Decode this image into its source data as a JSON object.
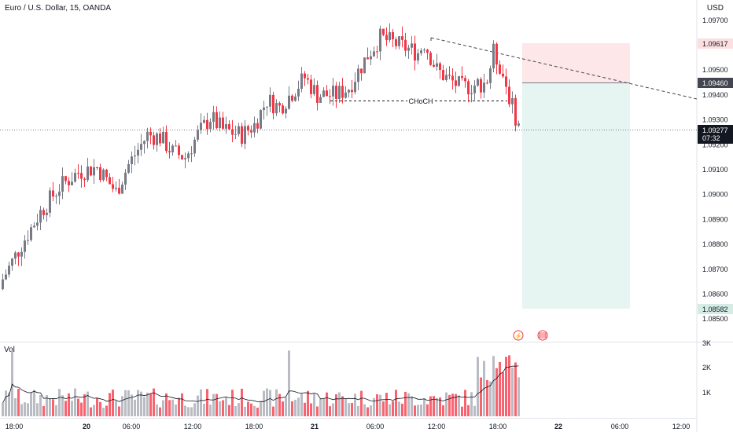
{
  "header": {
    "symbol_title": "Euro / U.S. Dollar, 15, OANDA",
    "currency": "USD"
  },
  "price_axis": {
    "ticks": [
      "1.09700",
      "1.09600",
      "1.09500",
      "1.09400",
      "1.09300",
      "1.09200",
      "1.09100",
      "1.09000",
      "1.08900",
      "1.08800",
      "1.08700",
      "1.08600",
      "1.08500"
    ]
  },
  "price_labels": {
    "stop": "1.09617",
    "entry": "1.09460",
    "current": "1.09277",
    "countdown": "07:32",
    "target": "1.08582"
  },
  "annotation": {
    "choch": "CHoCH"
  },
  "volume": {
    "label": "Vol",
    "ticks": [
      "3K",
      "2K",
      "1K"
    ]
  },
  "time_axis": {
    "ticks": [
      {
        "label": "18:00",
        "bold": false
      },
      {
        "label": "20",
        "bold": true
      },
      {
        "label": "06:00",
        "bold": false
      },
      {
        "label": "12:00",
        "bold": false
      },
      {
        "label": "18:00",
        "bold": false
      },
      {
        "label": "21",
        "bold": true
      },
      {
        "label": "06:00",
        "bold": false
      },
      {
        "label": "12:00",
        "bold": false
      },
      {
        "label": "18:00",
        "bold": false
      },
      {
        "label": "22",
        "bold": true
      },
      {
        "label": "06:00",
        "bold": false
      },
      {
        "label": "12:00",
        "bold": false
      }
    ]
  },
  "colors": {
    "up": "#787b86",
    "down": "#f23645",
    "stop_zone": "rgba(242,54,69,0.12)",
    "target_zone": "rgba(8,153,129,0.10)",
    "ma": "#131722"
  },
  "chart_data": {
    "type": "candlestick",
    "timeframe": "15",
    "ylim": [
      1.0845,
      1.0975
    ],
    "series_close_path": [
      [
        0,
        1.0866
      ],
      [
        6,
        1.088
      ],
      [
        12,
        1.0893
      ],
      [
        18,
        1.0903
      ],
      [
        24,
        1.0909
      ],
      [
        30,
        1.0911
      ],
      [
        36,
        1.0901
      ],
      [
        40,
        1.0912
      ],
      [
        46,
        1.0924
      ],
      [
        50,
        1.0923
      ],
      [
        54,
        1.0917
      ],
      [
        58,
        1.0915
      ],
      [
        62,
        1.0924
      ],
      [
        66,
        1.0931
      ],
      [
        70,
        1.0926
      ],
      [
        76,
        1.0924
      ],
      [
        80,
        1.0928
      ],
      [
        84,
        1.0938
      ],
      [
        88,
        1.0935
      ],
      [
        92,
        1.0941
      ],
      [
        96,
        1.0947
      ],
      [
        100,
        1.094
      ],
      [
        106,
        1.094
      ],
      [
        110,
        1.0943
      ],
      [
        116,
        1.0956
      ],
      [
        120,
        1.0963
      ],
      [
        126,
        1.096
      ],
      [
        132,
        1.0957
      ],
      [
        134,
        1.0961
      ],
      [
        138,
        1.095
      ],
      [
        142,
        1.0946
      ],
      [
        146,
        1.0943
      ],
      [
        150,
        1.0944
      ],
      [
        154,
        1.0946
      ],
      [
        156,
        1.0957
      ],
      [
        158,
        1.0952
      ],
      [
        160,
        1.0944
      ],
      [
        162,
        1.0935
      ],
      [
        164,
        1.0928
      ]
    ],
    "annotations": {
      "stop_price": 1.09617,
      "entry_price": 1.0946,
      "current_price": 1.09277,
      "target_price": 1.08582,
      "choch_level": 1.0939
    }
  }
}
